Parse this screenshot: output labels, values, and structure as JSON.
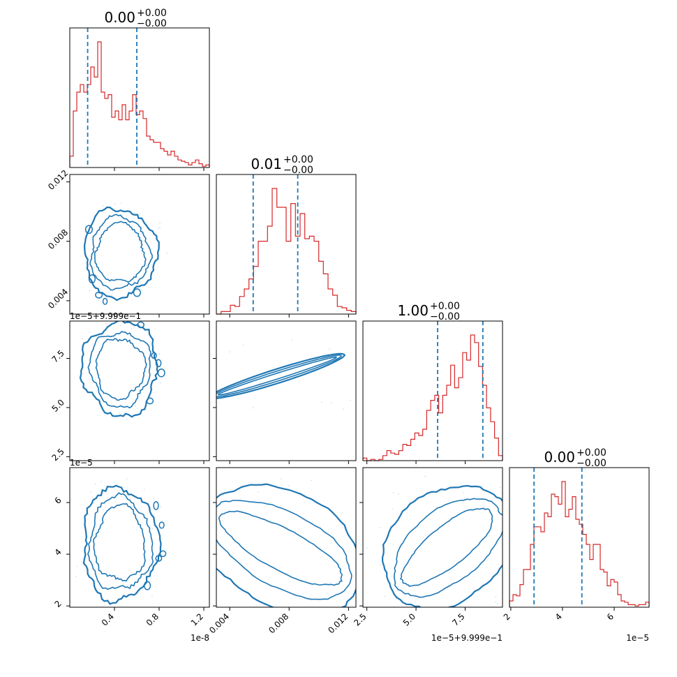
{
  "chart_data": {
    "type": "corner",
    "colors": {
      "hist": "#d62728",
      "contour": "#1f77b4",
      "quantile": "#1f77b4",
      "axis": "#000000"
    },
    "params": [
      {
        "name": "p0",
        "range": [
          0.0,
          1.25
        ],
        "ticks": [
          0.4,
          0.8,
          1.2
        ],
        "tick_labels": [
          "0.4",
          "0.8",
          "1.2"
        ],
        "offset_text": "1e-8",
        "title": {
          "main": "0.00",
          "plus": "+0.00",
          "minus": "−0.00"
        },
        "quantiles": [
          0.16,
          0.6
        ]
      },
      {
        "name": "p1",
        "range": [
          0.0031,
          0.0125
        ],
        "ticks": [
          0.004,
          0.008,
          0.012
        ],
        "tick_labels": [
          "0.004",
          "0.008",
          "0.012"
        ],
        "offset_text": "",
        "title": {
          "main": "0.01",
          "plus": "+0.00",
          "minus": "−0.00"
        },
        "quantiles": [
          0.00558,
          0.00858
        ]
      },
      {
        "name": "p2",
        "range": [
          2.3,
          9.4
        ],
        "ticks": [
          2.5,
          5.0,
          7.5
        ],
        "tick_labels": [
          "2.5",
          "5.0",
          "7.5"
        ],
        "offset_text": "1e−5+9.999e−1",
        "title": {
          "main": "1.00",
          "plus": "+0.00",
          "minus": "−0.00"
        },
        "quantiles": [
          6.1,
          8.4
        ]
      },
      {
        "name": "p3",
        "range": [
          1.95,
          7.35
        ],
        "ticks": [
          2,
          4,
          6
        ],
        "tick_labels": [
          "2",
          "4",
          "6"
        ],
        "offset_text": "1e−5",
        "title": {
          "main": "0.00",
          "plus": "+0.00",
          "minus": "−0.00"
        },
        "quantiles": [
          2.9,
          4.75
        ]
      }
    ],
    "histograms": [
      [
        0.09,
        0.45,
        0.6,
        0.66,
        0.6,
        0.66,
        0.8,
        0.72,
        1.0,
        0.6,
        0.55,
        0.58,
        0.4,
        0.45,
        0.38,
        0.5,
        0.38,
        0.45,
        0.58,
        0.42,
        0.45,
        0.39,
        0.25,
        0.22,
        0.2,
        0.2,
        0.15,
        0.13,
        0.1,
        0.13,
        0.09,
        0.06,
        0.05,
        0.04,
        0.02,
        0.04,
        0.06,
        0.03,
        0.01,
        0.02
      ],
      [
        0.0,
        0.02,
        0.02,
        0.07,
        0.06,
        0.14,
        0.2,
        0.28,
        0.38,
        0.58,
        0.58,
        0.7,
        1.0,
        0.85,
        0.85,
        0.58,
        0.88,
        0.62,
        0.8,
        0.6,
        0.62,
        0.58,
        0.42,
        0.32,
        0.2,
        0.15,
        0.06,
        0.05,
        0.03,
        0.02
      ],
      [
        0.02,
        0.0,
        0.01,
        0.0,
        0.01,
        0.04,
        0.08,
        0.06,
        0.05,
        0.08,
        0.13,
        0.12,
        0.17,
        0.22,
        0.2,
        0.25,
        0.4,
        0.48,
        0.52,
        0.38,
        0.52,
        0.6,
        0.76,
        0.58,
        0.66,
        0.86,
        0.8,
        1.0,
        0.94,
        0.75,
        0.6,
        0.42,
        0.31,
        0.18,
        0.04
      ],
      [
        0.05,
        0.1,
        0.09,
        0.18,
        0.3,
        0.3,
        0.5,
        0.64,
        0.64,
        0.6,
        0.75,
        0.72,
        0.9,
        0.88,
        0.82,
        1.0,
        0.72,
        0.78,
        0.88,
        0.7,
        0.66,
        0.58,
        0.5,
        0.38,
        0.5,
        0.5,
        0.3,
        0.28,
        0.17,
        0.22,
        0.2,
        0.1,
        0.05,
        0.04,
        0.02,
        0.02,
        0.01,
        0.02,
        0.02,
        0.04
      ]
    ],
    "scatter_2d": [
      {
        "pair": [
          0,
          1
        ],
        "center": [
          0.45,
          0.0072
        ],
        "scale": [
          0.24,
          0.0022
        ],
        "angle": 0.05,
        "radii": [
          0.9,
          1.1,
          1.35
        ],
        "wobble": 0.12
      },
      {
        "pair": [
          0,
          2
        ],
        "center": [
          0.45,
          7.0
        ],
        "scale": [
          0.24,
          1.7
        ],
        "angle": -0.05,
        "radii": [
          0.9,
          1.12,
          1.4
        ],
        "wobble": 0.13
      },
      {
        "pair": [
          1,
          2
        ],
        "center": [
          0.0072,
          6.6
        ],
        "scale": [
          0.0048,
          1.15
        ],
        "angle": -0.21,
        "radii": [
          0.92,
          1.0,
          1.05
        ],
        "wobble": 0.01,
        "aspect": 0.045
      },
      {
        "pair": [
          0,
          3
        ],
        "center": [
          0.45,
          4.4
        ],
        "scale": [
          0.25,
          1.6
        ],
        "angle": 0.0,
        "radii": [
          0.9,
          1.12,
          1.35
        ],
        "wobble": 0.12
      },
      {
        "pair": [
          1,
          3
        ],
        "center": [
          0.0075,
          4.2
        ],
        "scale": [
          0.0045,
          1.7
        ],
        "angle": 0.27,
        "radii": [
          0.95,
          1.08,
          1.2
        ],
        "wobble": 0.05,
        "aspect": 0.3
      },
      {
        "pair": [
          2,
          3
        ],
        "center": [
          6.6,
          4.3
        ],
        "scale": [
          2.6,
          1.6
        ],
        "angle": -0.3,
        "radii": [
          0.95,
          1.08,
          1.2
        ],
        "wobble": 0.05,
        "aspect": 0.35
      }
    ]
  }
}
